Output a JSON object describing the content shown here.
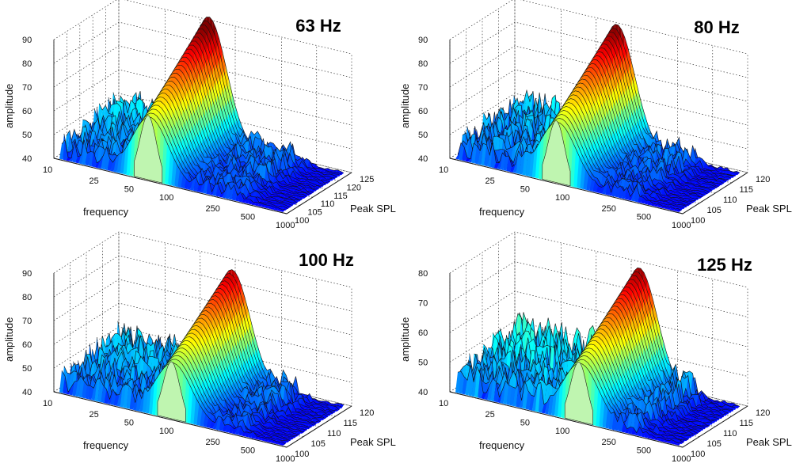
{
  "figure": "Four 3D waterfall surface plots of amplitude versus frequency and peak SPL",
  "chart_data": [
    {
      "type": "surface3d",
      "title": "63 Hz",
      "xlabel": "frequency",
      "ylabel": "Peak SPL",
      "zlabel": "amplitude",
      "x_ticks": [
        "10",
        "25",
        "50",
        "100",
        "250",
        "500",
        "1000"
      ],
      "y_ticks": [
        "100",
        "105",
        "110",
        "115",
        "120",
        "125"
      ],
      "z_ticks": [
        "40",
        "50",
        "60",
        "70",
        "80",
        "90"
      ],
      "zlim": [
        40,
        90
      ],
      "peak": {
        "frequency": 63,
        "amplitude": 94
      },
      "colormap": "jet"
    },
    {
      "type": "surface3d",
      "title": "80 Hz",
      "xlabel": "frequency",
      "ylabel": "Peak SPL",
      "zlabel": "amplitude",
      "x_ticks": [
        "10",
        "25",
        "50",
        "100",
        "250",
        "500",
        "1000"
      ],
      "y_ticks": [
        "100",
        "105",
        "110",
        "115",
        "120"
      ],
      "z_ticks": [
        "40",
        "50",
        "60",
        "70",
        "80",
        "90"
      ],
      "zlim": [
        40,
        90
      ],
      "peak": {
        "frequency": 80,
        "amplitude": 92
      },
      "colormap": "jet"
    },
    {
      "type": "surface3d",
      "title": "100 Hz",
      "xlabel": "frequency",
      "ylabel": "Peak SPL",
      "zlabel": "amplitude",
      "x_ticks": [
        "10",
        "25",
        "50",
        "100",
        "250",
        "500",
        "1000"
      ],
      "y_ticks": [
        "100",
        "105",
        "110",
        "115",
        "120"
      ],
      "z_ticks": [
        "40",
        "50",
        "60",
        "70",
        "80",
        "90"
      ],
      "zlim": [
        40,
        90
      ],
      "peak": {
        "frequency": 100,
        "amplitude": 88
      },
      "colormap": "jet"
    },
    {
      "type": "surface3d",
      "title": "125 Hz",
      "xlabel": "frequency",
      "ylabel": "Peak SPL",
      "zlabel": "amplitude",
      "x_ticks": [
        "10",
        "25",
        "50",
        "100",
        "250",
        "500",
        "1000"
      ],
      "y_ticks": [
        "100",
        "105",
        "110",
        "115",
        "120"
      ],
      "z_ticks": [
        "40",
        "50",
        "60",
        "70",
        "80"
      ],
      "zlim": [
        40,
        80
      ],
      "peak": {
        "frequency": 125,
        "amplitude": 80
      },
      "colormap": "jet"
    }
  ]
}
